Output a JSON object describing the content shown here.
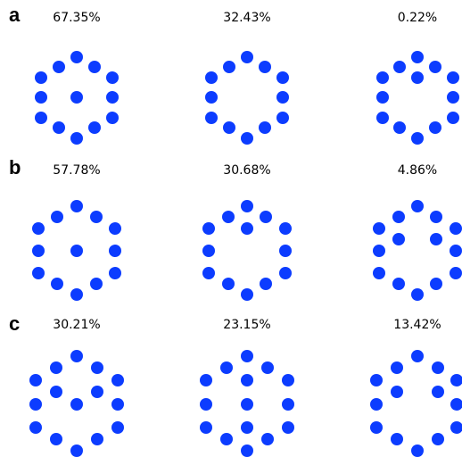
{
  "panels": [
    {
      "label": "a",
      "items": [
        {
          "text": "67.35%"
        },
        {
          "text": "32.43%"
        },
        {
          "text": "0.22%"
        }
      ]
    },
    {
      "label": "b",
      "items": [
        {
          "text": "57.78%"
        },
        {
          "text": "30.68%"
        },
        {
          "text": "4.86%"
        }
      ]
    },
    {
      "label": "c",
      "items": [
        {
          "text": "30.21%"
        },
        {
          "text": "23.15%"
        },
        {
          "text": "13.42%"
        }
      ]
    }
  ]
}
